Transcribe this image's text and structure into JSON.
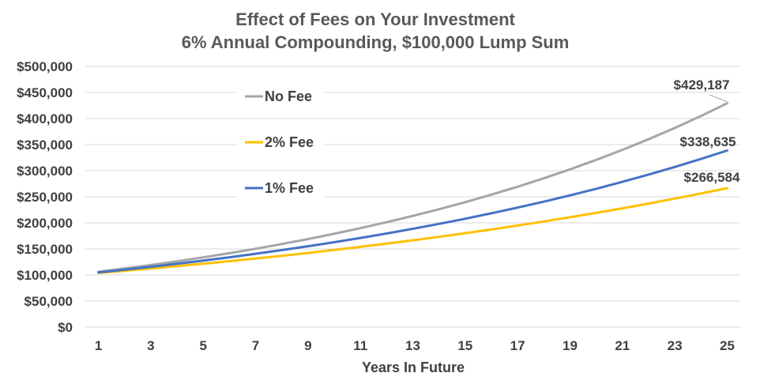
{
  "chart_data": {
    "type": "line",
    "title": "Effect of Fees on Your Investment",
    "subtitle": "6% Annual Compounding, $100,000 Lump Sum",
    "xlabel": "Years In Future",
    "ylabel": "",
    "x": [
      1,
      2,
      3,
      4,
      5,
      6,
      7,
      8,
      9,
      10,
      11,
      12,
      13,
      14,
      15,
      16,
      17,
      18,
      19,
      20,
      21,
      22,
      23,
      24,
      25
    ],
    "x_tick_labels": [
      "1",
      "3",
      "5",
      "7",
      "9",
      "11",
      "13",
      "15",
      "17",
      "19",
      "21",
      "23",
      "25"
    ],
    "ylim": [
      0,
      500000
    ],
    "y_tick_labels": [
      "$0",
      "$50,000",
      "$100,000",
      "$150,000",
      "$200,000",
      "$250,000",
      "$300,000",
      "$350,000",
      "$400,000",
      "$450,000",
      "$500,000"
    ],
    "grid": true,
    "legend_position": "upper-left-inside",
    "series": [
      {
        "name": "No Fee",
        "color": "#a5a5a5",
        "values": [
          106000,
          112360,
          119102,
          126248,
          133823,
          141852,
          150363,
          159385,
          168948,
          179085,
          189830,
          201220,
          213293,
          226090,
          239656,
          254035,
          269277,
          285434,
          302560,
          320714,
          339956,
          360354,
          381975,
          404893,
          429187
        ],
        "end_label": "$429,187"
      },
      {
        "name": "2% Fee",
        "color": "#ffc000",
        "values": [
          104000,
          108160,
          112486,
          116986,
          121665,
          126532,
          131593,
          136857,
          142331,
          148024,
          153945,
          160103,
          166507,
          173168,
          180094,
          187298,
          194790,
          202582,
          210685,
          219112,
          227877,
          236992,
          246472,
          256330,
          266584
        ],
        "end_label": "$266,584"
      },
      {
        "name": "1% Fee",
        "color": "#4472c4",
        "values": [
          105000,
          110250,
          115763,
          121551,
          127628,
          134010,
          140710,
          147746,
          155133,
          162889,
          171034,
          179586,
          188565,
          197993,
          207893,
          218287,
          229202,
          240662,
          252695,
          265330,
          278596,
          292526,
          307152,
          322510,
          338635
        ],
        "end_label": "$338,635"
      }
    ]
  }
}
